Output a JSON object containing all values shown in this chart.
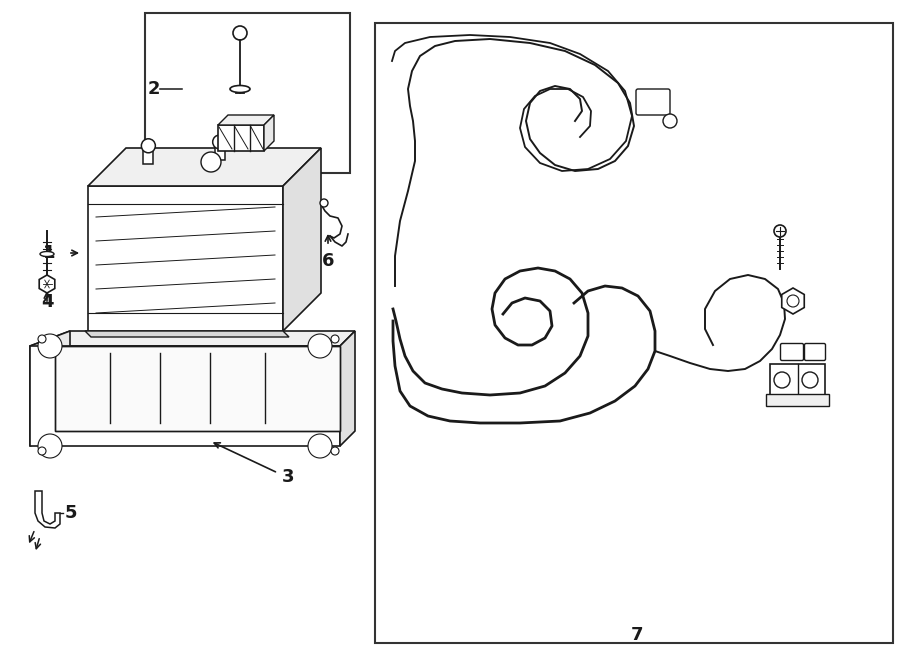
{
  "bg": "#ffffff",
  "lc": "#1a1a1a",
  "lw": 1.3,
  "fig_w": 9.0,
  "fig_h": 6.61,
  "dpi": 100
}
